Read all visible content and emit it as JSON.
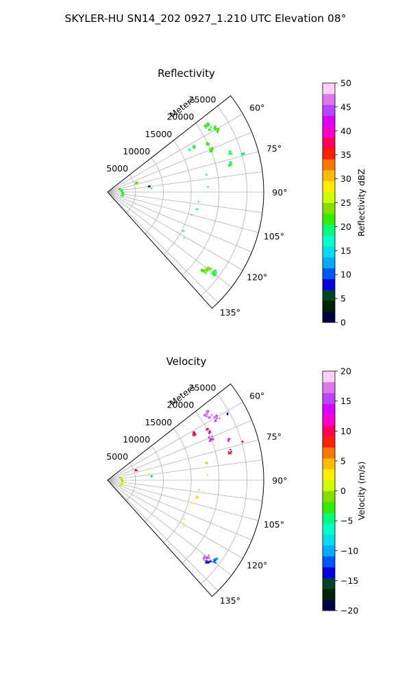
{
  "figure_title": "SKYLER-HU  SN14_202  0927_1.210 UTC Elevation 08°",
  "chart_data": [
    {
      "type": "polar-sector-scatter",
      "title": "Reflectivity",
      "range_label": "Meters",
      "range_ticks": [
        5000,
        10000,
        15000,
        20000,
        25000
      ],
      "azimuth_ticks": [
        "60°",
        "75°",
        "90°",
        "105°",
        "120°",
        "135°"
      ],
      "azimuth_range_deg": [
        52,
        138
      ],
      "range_max_m": 28000,
      "grid": true,
      "colorbar": {
        "label": "Reflectivity dBZ",
        "min": 0,
        "max": 50,
        "tick_labels": [
          "0",
          "5",
          "10",
          "15",
          "20",
          "25",
          "30",
          "35",
          "40",
          "45",
          "50"
        ],
        "colors": [
          "#000044",
          "#002200",
          "#004422",
          "#0000dd",
          "#0055ff",
          "#00aaff",
          "#00ddee",
          "#00ffcc",
          "#00ff77",
          "#33ee00",
          "#88dd00",
          "#ccff00",
          "#ffee00",
          "#ffbb00",
          "#ff7700",
          "#ff2200",
          "#ff0055",
          "#ff00cc",
          "#dd00ff",
          "#bb44ff",
          "#dd77ee",
          "#ffcfff"
        ]
      },
      "points": [
        {
          "az": 57,
          "r": 21500,
          "v": 20,
          "n": 12,
          "s": 1200
        },
        {
          "az": 60,
          "r": 22500,
          "v": 22,
          "n": 8,
          "s": 900
        },
        {
          "az": 64,
          "r": 20000,
          "v": 21,
          "n": 6,
          "s": 700
        },
        {
          "az": 62,
          "r": 17500,
          "v": 20,
          "n": 5,
          "s": 500
        },
        {
          "az": 63,
          "r": 16500,
          "v": 18,
          "n": 2,
          "s": 200
        },
        {
          "az": 68,
          "r": 20000,
          "v": 22,
          "n": 7,
          "s": 700
        },
        {
          "az": 72,
          "r": 23000,
          "v": 20,
          "n": 4,
          "s": 500
        },
        {
          "az": 74,
          "r": 25200,
          "v": 19,
          "n": 3,
          "s": 300
        },
        {
          "az": 77,
          "r": 22500,
          "v": 20,
          "n": 6,
          "s": 600
        },
        {
          "az": 80,
          "r": 18000,
          "v": 15,
          "n": 2,
          "s": 200
        },
        {
          "az": 87,
          "r": 18000,
          "v": 14,
          "n": 1,
          "s": 100
        },
        {
          "az": 72,
          "r": 5500,
          "v": 22,
          "n": 3,
          "s": 300
        },
        {
          "az": 82,
          "r": 7500,
          "v": 5,
          "n": 2,
          "s": 150
        },
        {
          "az": 85,
          "r": 7900,
          "v": 14,
          "n": 1,
          "s": 100
        },
        {
          "az": 78,
          "r": 2300,
          "v": 20,
          "n": 2,
          "s": 150
        },
        {
          "az": 83,
          "r": 2500,
          "v": 20,
          "n": 2,
          "s": 150
        },
        {
          "az": 95,
          "r": 2700,
          "v": 22,
          "n": 2,
          "s": 150
        },
        {
          "az": 100,
          "r": 2800,
          "v": 20,
          "n": 2,
          "s": 150
        },
        {
          "az": 106,
          "r": 2600,
          "v": 19,
          "n": 2,
          "s": 150
        },
        {
          "az": 96,
          "r": 16400,
          "v": 14,
          "n": 1,
          "s": 100
        },
        {
          "az": 101,
          "r": 16300,
          "v": 20,
          "n": 2,
          "s": 150
        },
        {
          "az": 105,
          "r": 15600,
          "v": 13,
          "n": 1,
          "s": 100
        },
        {
          "az": 117,
          "r": 15300,
          "v": 14,
          "n": 1,
          "s": 100
        },
        {
          "az": 121,
          "r": 16000,
          "v": 14,
          "n": 1,
          "s": 100
        },
        {
          "az": 128,
          "r": 22500,
          "v": 23,
          "n": 14,
          "s": 1300
        },
        {
          "az": 127,
          "r": 24000,
          "v": 21,
          "n": 8,
          "s": 900
        }
      ]
    },
    {
      "type": "polar-sector-scatter",
      "title": "Velocity",
      "range_label": "Meters",
      "range_ticks": [
        5000,
        10000,
        15000,
        20000,
        25000
      ],
      "azimuth_ticks": [
        "60°",
        "75°",
        "90°",
        "105°",
        "120°",
        "135°"
      ],
      "azimuth_range_deg": [
        52,
        138
      ],
      "range_max_m": 28000,
      "grid": true,
      "colorbar": {
        "label": "Velocity (m/s)",
        "min": -20,
        "max": 20,
        "tick_labels": [
          "−20",
          "−15",
          "−10",
          "−5",
          "0",
          "5",
          "10",
          "15",
          "20"
        ],
        "colors": [
          "#000044",
          "#002200",
          "#004422",
          "#0000dd",
          "#0055ff",
          "#00aaff",
          "#00ddee",
          "#00ffcc",
          "#00ff77",
          "#33ee00",
          "#88dd00",
          "#ccff00",
          "#ffee00",
          "#ffbb00",
          "#ff7700",
          "#ff2200",
          "#ff0055",
          "#ff00cc",
          "#dd00ff",
          "#bb44ff",
          "#dd77ee",
          "#ffcfff"
        ]
      },
      "points": [
        {
          "az": 57,
          "r": 21500,
          "v": 16,
          "n": 12,
          "s": 1200
        },
        {
          "az": 60,
          "r": 22500,
          "v": 16,
          "n": 8,
          "s": 900
        },
        {
          "az": 61,
          "r": 24500,
          "v": -14,
          "n": 2,
          "s": 200
        },
        {
          "az": 64,
          "r": 20000,
          "v": 10,
          "n": 6,
          "s": 700
        },
        {
          "az": 62,
          "r": 17500,
          "v": 10,
          "n": 5,
          "s": 500
        },
        {
          "az": 68,
          "r": 20000,
          "v": 15,
          "n": 7,
          "s": 700
        },
        {
          "az": 72,
          "r": 23000,
          "v": 13,
          "n": 4,
          "s": 500
        },
        {
          "az": 74,
          "r": 25200,
          "v": 9,
          "n": 3,
          "s": 300
        },
        {
          "az": 77,
          "r": 22500,
          "v": 10,
          "n": 6,
          "s": 600
        },
        {
          "az": 80,
          "r": 18000,
          "v": 3,
          "n": 2,
          "s": 200
        },
        {
          "az": 87,
          "r": 18000,
          "v": 0,
          "n": 1,
          "s": 100
        },
        {
          "az": 72,
          "r": 5500,
          "v": 9,
          "n": 3,
          "s": 300
        },
        {
          "az": 82,
          "r": 7500,
          "v": 3,
          "n": 2,
          "s": 150
        },
        {
          "az": 85,
          "r": 7900,
          "v": -10,
          "n": 1,
          "s": 100
        },
        {
          "az": 78,
          "r": 2300,
          "v": 0,
          "n": 2,
          "s": 150
        },
        {
          "az": 83,
          "r": 2500,
          "v": 0,
          "n": 2,
          "s": 150
        },
        {
          "az": 95,
          "r": 2700,
          "v": 1,
          "n": 2,
          "s": 150
        },
        {
          "az": 100,
          "r": 2800,
          "v": 2,
          "n": 2,
          "s": 150
        },
        {
          "az": 106,
          "r": 2600,
          "v": 0,
          "n": 2,
          "s": 150
        },
        {
          "az": 96,
          "r": 16400,
          "v": 0,
          "n": 1,
          "s": 100
        },
        {
          "az": 101,
          "r": 16300,
          "v": 4,
          "n": 2,
          "s": 150
        },
        {
          "az": 105,
          "r": 15600,
          "v": 2,
          "n": 1,
          "s": 100
        },
        {
          "az": 117,
          "r": 15300,
          "v": 2,
          "n": 1,
          "s": 100
        },
        {
          "az": 121,
          "r": 16000,
          "v": 0,
          "n": 1,
          "s": 100
        },
        {
          "az": 128,
          "r": 22500,
          "v": 17,
          "n": 10,
          "s": 1100
        },
        {
          "az": 129,
          "r": 23200,
          "v": -13,
          "n": 5,
          "s": 600
        },
        {
          "az": 127,
          "r": 24000,
          "v": -11,
          "n": 8,
          "s": 900
        }
      ]
    }
  ]
}
